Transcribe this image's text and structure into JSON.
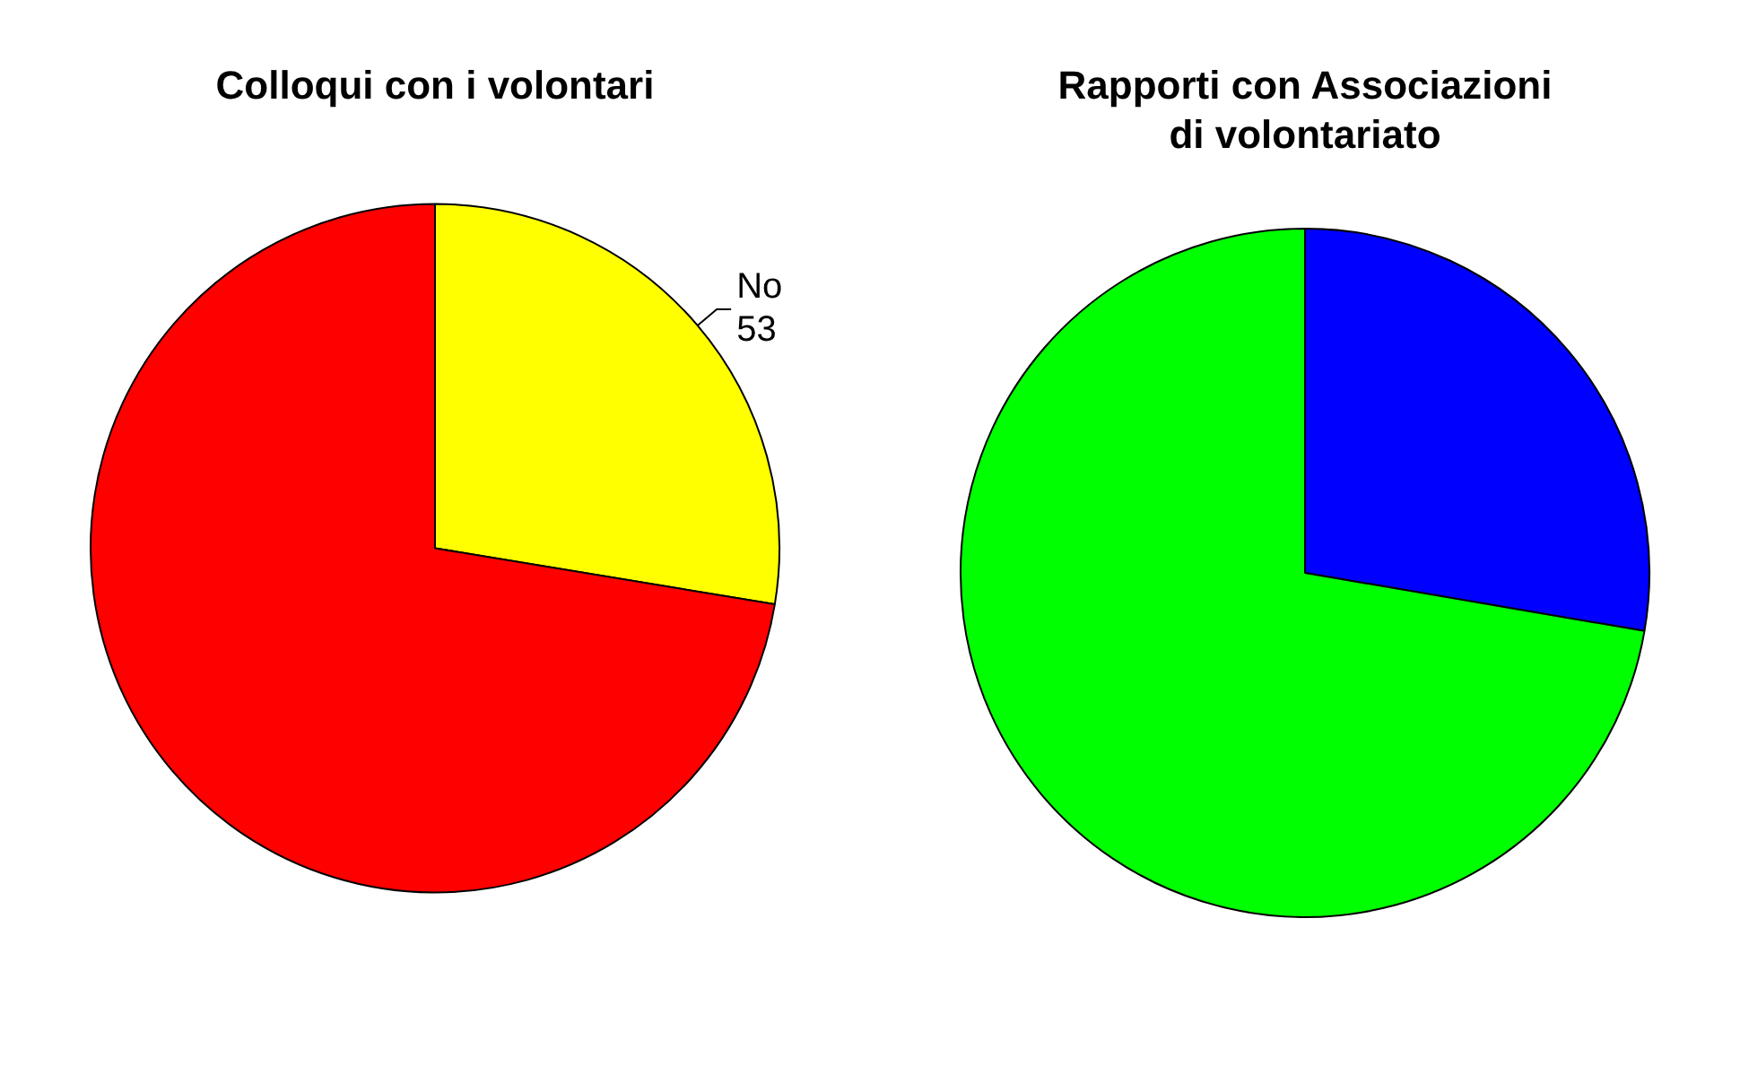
{
  "chart_data": [
    {
      "type": "pie",
      "title": "Colloqui con i volontari",
      "categories": [
        "No",
        null
      ],
      "values": [
        53,
        139
      ],
      "value_labels": [
        "53",
        null
      ],
      "colors": [
        "#ffff00",
        "#ff0000"
      ]
    },
    {
      "type": "pie",
      "title": "Rapporti con Associazioni\ndi volontariato",
      "categories": [
        null,
        null
      ],
      "values": [
        27.7,
        72.3
      ],
      "colors": [
        "#0000ff",
        "#00ff00"
      ]
    }
  ]
}
